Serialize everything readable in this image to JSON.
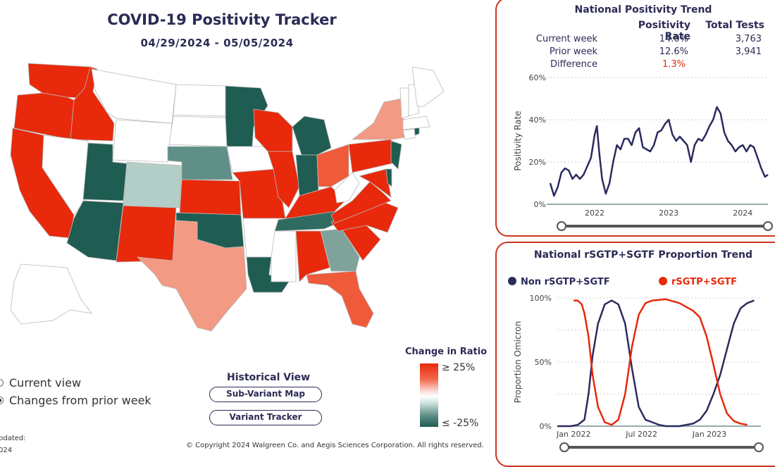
{
  "header": {
    "title": "COVID-19 Positivity Tracker",
    "date_range": "04/29/2024 - 05/05/2024"
  },
  "legend": {
    "title": "Change in Ratio",
    "max_label": "≥ 25%",
    "min_label": "≤ -25%",
    "colors": {
      "high": "#e8290b",
      "mid": "#ffffff",
      "low": "#1f5c52"
    }
  },
  "view_toggle": {
    "options": [
      {
        "label": "Current view",
        "selected": false
      },
      {
        "label": "Changes from prior week",
        "selected": true
      }
    ]
  },
  "historical": {
    "title": "Historical View",
    "buttons": [
      "Sub-Variant Map",
      "Variant Tracker"
    ]
  },
  "footer": {
    "updated_label": "pdated:",
    "updated_value": "024",
    "copyright": "© Copyright 2024 Walgreen Co. and Aegis Sciences Corporation. All rights reserved."
  },
  "national_trend": {
    "title": "National Positivity Trend",
    "columns": [
      "Positivity Rate",
      "Total Tests"
    ],
    "rows": [
      {
        "label": "Current week",
        "rate": "14.0%",
        "tests": "3,763"
      },
      {
        "label": "Prior week",
        "rate": "12.6%",
        "tests": "3,941"
      },
      {
        "label": "Difference",
        "rate": "1.3%",
        "tests": ""
      }
    ],
    "difference_color": "#e8290b"
  },
  "proportion_trend": {
    "title": "National rSGTP+SGTF Proportion Trend",
    "legend": [
      {
        "name": "Non rSGTP+SGTF",
        "color": "#2b2b5e"
      },
      {
        "name": "rSGTP+SGTF",
        "color": "#e8290b"
      }
    ]
  },
  "chart_data": [
    {
      "type": "line",
      "ylabel": "Positivity Rate",
      "xlabel": "",
      "x_ticks": [
        "2022",
        "2023",
        "2024"
      ],
      "y_ticks": [
        "0%",
        "20%",
        "40%",
        "60%"
      ],
      "ylim": [
        0,
        60
      ],
      "x": [
        2021.4,
        2021.45,
        2021.5,
        2021.55,
        2021.6,
        2021.65,
        2021.7,
        2021.75,
        2021.8,
        2021.85,
        2021.9,
        2021.95,
        2022.0,
        2022.03,
        2022.06,
        2022.1,
        2022.15,
        2022.2,
        2022.25,
        2022.3,
        2022.35,
        2022.4,
        2022.45,
        2022.5,
        2022.55,
        2022.6,
        2022.65,
        2022.7,
        2022.75,
        2022.8,
        2022.85,
        2022.9,
        2022.95,
        2023.0,
        2023.05,
        2023.1,
        2023.15,
        2023.2,
        2023.25,
        2023.3,
        2023.35,
        2023.4,
        2023.45,
        2023.5,
        2023.55,
        2023.6,
        2023.65,
        2023.7,
        2023.75,
        2023.8,
        2023.85,
        2023.9,
        2023.95,
        2024.0,
        2024.05,
        2024.1,
        2024.15,
        2024.2,
        2024.25,
        2024.3,
        2024.34
      ],
      "series": [
        {
          "name": "",
          "values": [
            10,
            4,
            8,
            15,
            17,
            16,
            12,
            14,
            12,
            14,
            18,
            22,
            33,
            37,
            25,
            12,
            5,
            10,
            20,
            28,
            26,
            31,
            31,
            28,
            34,
            36,
            27,
            26,
            25,
            28,
            34,
            35,
            38,
            40,
            33,
            30,
            32,
            30,
            28,
            20,
            28,
            31,
            30,
            33,
            37,
            40,
            46,
            43,
            34,
            30,
            28,
            25,
            27,
            28,
            25,
            28,
            27,
            22,
            17,
            13,
            14
          ]
        }
      ]
    },
    {
      "type": "line",
      "ylabel": "Proportion Omicron",
      "xlabel": "",
      "x_ticks": [
        "Jan 2022",
        "Jul 2022",
        "Jan 2023"
      ],
      "y_ticks": [
        "0%",
        "50%",
        "100%"
      ],
      "ylim": [
        0,
        100
      ],
      "series": [
        {
          "name": "Non rSGTP+SGTF",
          "x": [
            2021.9,
            2021.95,
            2022.0,
            2022.05,
            2022.1,
            2022.13,
            2022.16,
            2022.2,
            2022.25,
            2022.3,
            2022.35,
            2022.4,
            2022.45,
            2022.5,
            2022.55,
            2022.6,
            2022.65,
            2022.7,
            2022.8,
            2022.9,
            2022.95,
            2023.0,
            2023.05,
            2023.1,
            2023.15,
            2023.2,
            2023.25,
            2023.3,
            2023.35
          ],
          "values": [
            0,
            0,
            0,
            1,
            5,
            25,
            55,
            80,
            95,
            98,
            95,
            80,
            45,
            15,
            5,
            3,
            1,
            0,
            0,
            2,
            5,
            12,
            25,
            40,
            60,
            80,
            92,
            96,
            98
          ]
        },
        {
          "name": "rSGTP+SGTF",
          "x": [
            2022.02,
            2022.05,
            2022.08,
            2022.1,
            2022.13,
            2022.16,
            2022.2,
            2022.25,
            2022.3,
            2022.35,
            2022.4,
            2022.45,
            2022.5,
            2022.55,
            2022.6,
            2022.7,
            2022.8,
            2022.9,
            2022.95,
            2023.0,
            2023.05,
            2023.1,
            2023.15,
            2023.2,
            2023.25,
            2023.3
          ],
          "values": [
            98,
            98,
            95,
            88,
            70,
            40,
            15,
            3,
            1,
            5,
            25,
            62,
            87,
            96,
            98,
            99,
            96,
            90,
            85,
            70,
            48,
            25,
            10,
            4,
            2,
            1
          ]
        }
      ]
    }
  ],
  "map": {
    "regions": [
      {
        "name": "WA",
        "color": "#e8290b"
      },
      {
        "name": "OR",
        "color": "#e8290b"
      },
      {
        "name": "CA",
        "color": "#e8290b"
      },
      {
        "name": "ID",
        "color": "#e8290b"
      },
      {
        "name": "NV",
        "color": "#ffffff"
      },
      {
        "name": "MT",
        "color": "#ffffff"
      },
      {
        "name": "WY",
        "color": "#ffffff"
      },
      {
        "name": "UT",
        "color": "#1f5c52"
      },
      {
        "name": "AZ",
        "color": "#1f5c52"
      },
      {
        "name": "CO",
        "color": "#b3cdc7"
      },
      {
        "name": "NM",
        "color": "#e8290b"
      },
      {
        "name": "ND",
        "color": "#ffffff"
      },
      {
        "name": "SD",
        "color": "#ffffff"
      },
      {
        "name": "NE",
        "color": "#5f8f86"
      },
      {
        "name": "KS",
        "color": "#e8290b"
      },
      {
        "name": "OK",
        "color": "#1f5c52"
      },
      {
        "name": "TX",
        "color": "#f29a84"
      },
      {
        "name": "MN",
        "color": "#1f5c52"
      },
      {
        "name": "IA",
        "color": "#ffffff"
      },
      {
        "name": "MO",
        "color": "#e8290b"
      },
      {
        "name": "AR",
        "color": "#ffffff"
      },
      {
        "name": "LA",
        "color": "#1f5c52"
      },
      {
        "name": "WI",
        "color": "#e8290b"
      },
      {
        "name": "IL",
        "color": "#e8290b"
      },
      {
        "name": "MI",
        "color": "#1f5c52"
      },
      {
        "name": "IN",
        "color": "#1f5c52"
      },
      {
        "name": "OH",
        "color": "#ef5a3a"
      },
      {
        "name": "KY",
        "color": "#e8290b"
      },
      {
        "name": "TN",
        "color": "#2f6b60"
      },
      {
        "name": "MS",
        "color": "#ffffff"
      },
      {
        "name": "AL",
        "color": "#e8290b"
      },
      {
        "name": "GA",
        "color": "#7fa39b"
      },
      {
        "name": "FL",
        "color": "#ef5a3a"
      },
      {
        "name": "SC",
        "color": "#e8290b"
      },
      {
        "name": "NC",
        "color": "#e8290b"
      },
      {
        "name": "VA",
        "color": "#e8290b"
      },
      {
        "name": "WV",
        "color": "#ffffff"
      },
      {
        "name": "PA",
        "color": "#e8290b"
      },
      {
        "name": "NY",
        "color": "#f29a84"
      },
      {
        "name": "NJ",
        "color": "#1f5c52"
      },
      {
        "name": "MD",
        "color": "#e8290b"
      },
      {
        "name": "DE",
        "color": "#1f5c52"
      },
      {
        "name": "CT",
        "color": "#ffffff"
      },
      {
        "name": "RI",
        "color": "#1f5c52"
      },
      {
        "name": "MA",
        "color": "#ffffff"
      },
      {
        "name": "VT",
        "color": "#ffffff"
      },
      {
        "name": "NH",
        "color": "#ffffff"
      },
      {
        "name": "ME",
        "color": "#ffffff"
      },
      {
        "name": "AK",
        "color": "#ffffff"
      }
    ]
  }
}
